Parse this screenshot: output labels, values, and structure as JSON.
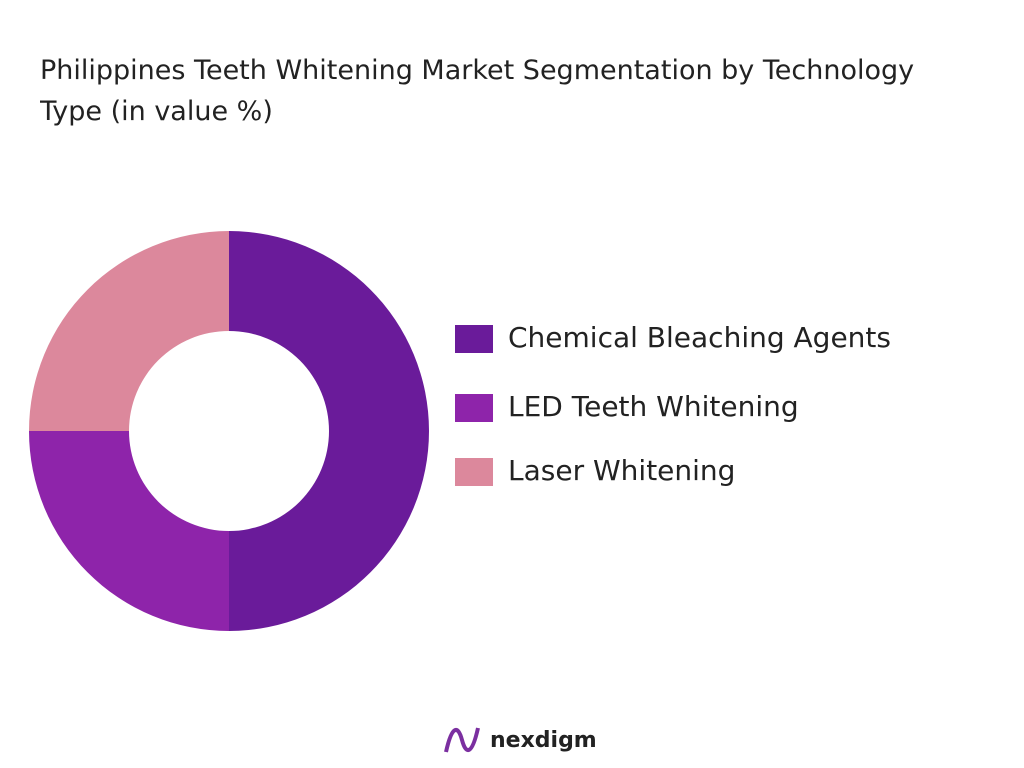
{
  "chart_data": {
    "type": "donut",
    "title": "Philippines Teeth Whitening Market Segmentation by Technology Type (in value %)",
    "categories": [
      "Chemical Bleaching Agents",
      "LED Teeth Whitening",
      "Laser Whitening"
    ],
    "values": [
      50,
      25,
      25
    ],
    "colors": [
      "#6a1b9a",
      "#8e24aa",
      "#dc889c"
    ],
    "legend": "right"
  },
  "logo_text": "nexdigm"
}
